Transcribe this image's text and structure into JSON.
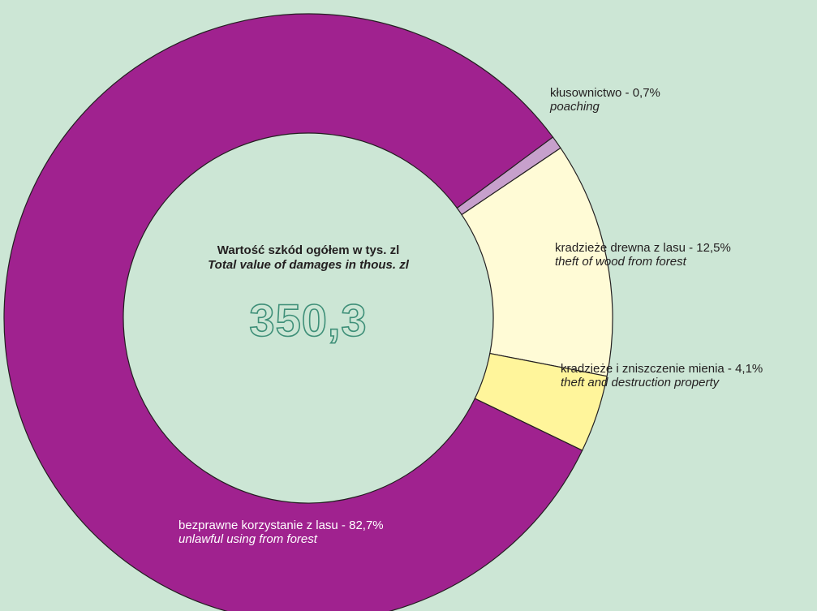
{
  "chart_data": {
    "type": "pie",
    "donut": true,
    "title_pl": "Wartość szkód ogółem w tys. zl",
    "title_en": "Total value of damages in thous. zl",
    "total": "350,3",
    "slices": [
      {
        "pl": "kłusownictwo - 0,7%",
        "en": "poaching",
        "value": 0.7,
        "color": "#c7a0cc"
      },
      {
        "pl": "kradzieże drewna z lasu - 12,5%",
        "en": "theft of wood from forest",
        "value": 12.5,
        "color": "#fffbd6"
      },
      {
        "pl": "kradzieże i zniszczenie mienia - 4,1%",
        "en": "theft and destruction property",
        "value": 4.1,
        "color": "#fff59b"
      },
      {
        "pl": "bezprawne korzystanie z lasu - 82,7%",
        "en": "unlawful using from forest",
        "value": 82.7,
        "color": "#a0228f"
      }
    ]
  }
}
